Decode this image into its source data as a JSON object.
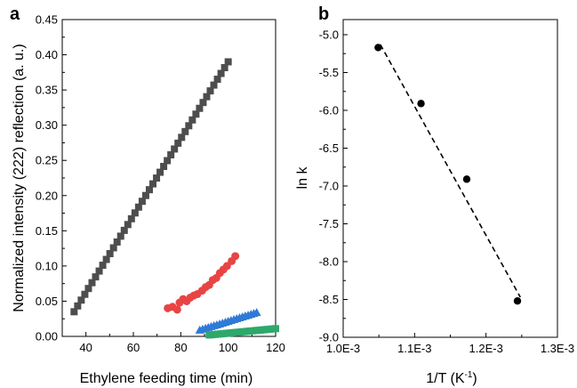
{
  "chart_data": [
    {
      "panel": "a",
      "type": "scatter",
      "xlabel": "Ethylene feeding time (min)",
      "ylabel": "Normalized intensity (222) reflection (a. u.)",
      "xlim": [
        30,
        120
      ],
      "ylim": [
        0,
        0.45
      ],
      "xticks": [
        "40",
        "60",
        "80",
        "100",
        "120"
      ],
      "yticks": [
        "0.00",
        "0.05",
        "0.10",
        "0.15",
        "0.20",
        "0.25",
        "0.30",
        "0.35",
        "0.40",
        "0.45"
      ],
      "grid": false,
      "series": [
        {
          "marker": "square",
          "color": "#4d4d4d",
          "x_start": 35,
          "x_end": 100,
          "x_step": 1.5,
          "y_start": 0.035,
          "y_end": 0.39
        },
        {
          "marker": "circle",
          "color": "#e84444",
          "x": [
            74.5,
            76.5,
            78.5,
            79.5,
            81,
            82.5,
            84,
            85.5,
            87,
            89,
            90.5,
            92,
            93.5,
            95,
            96.5,
            98,
            99.5,
            101.5,
            103
          ],
          "y": [
            0.04,
            0.042,
            0.038,
            0.048,
            0.053,
            0.05,
            0.055,
            0.058,
            0.06,
            0.065,
            0.07,
            0.073,
            0.08,
            0.083,
            0.09,
            0.095,
            0.1,
            0.107,
            0.114
          ]
        },
        {
          "marker": "triangle",
          "color": "#2f7ad6",
          "x_start": 88,
          "x_end": 112,
          "x_step": 1.2,
          "y_start": 0.009,
          "y_end": 0.034
        },
        {
          "marker": "square",
          "color": "#2ea86b",
          "x_start": 92,
          "x_end": 120,
          "x_step": 1.2,
          "y_start": 0.002,
          "y_end": 0.011
        }
      ]
    },
    {
      "panel": "b",
      "type": "scatter",
      "xlabel": "1/T (K",
      "xlabel_sup": "-1",
      "xlabel_end": ")",
      "ylabel": "ln k",
      "xlim": [
        0.001,
        0.0013
      ],
      "ylim": [
        -9.0,
        -4.8
      ],
      "xticks": [
        "1.0E-3",
        "1.1E-3",
        "1.2E-3",
        "1.3E-3"
      ],
      "yticks": [
        "-5.0",
        "-5.5",
        "-6.0",
        "-6.5",
        "-7.0",
        "-7.5",
        "-8.0",
        "-8.5",
        "-9.0"
      ],
      "grid": false,
      "points": {
        "x": [
          0.001049,
          0.001109,
          0.001173,
          0.001244
        ],
        "y": [
          -5.17,
          -5.91,
          -6.91,
          -8.52
        ]
      },
      "fit_line": {
        "x": [
          0.001052,
          0.001248
        ],
        "y": [
          -5.13,
          -8.47
        ],
        "style": "dashed"
      }
    }
  ]
}
